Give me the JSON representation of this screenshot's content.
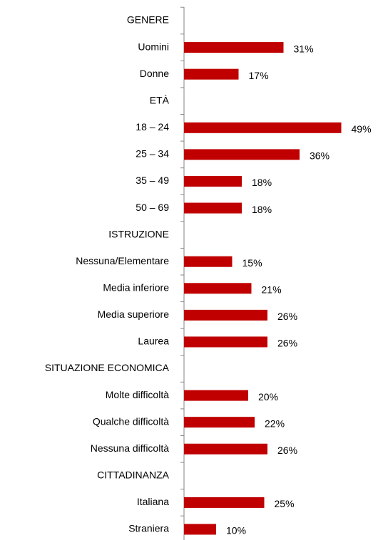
{
  "chart_data": {
    "type": "bar",
    "orientation": "horizontal",
    "color": "#c00000",
    "categories": [
      "GENERE",
      "Uomini",
      "Donne",
      "ETÀ",
      "18 – 24",
      "25 – 34",
      "35 – 49",
      "50 – 69",
      "ISTRUZIONE",
      "Nessuna/Elementare",
      "Media inferiore",
      "Media superiore",
      "Laurea",
      "SITUAZIONE ECONOMICA",
      "Molte difficoltà",
      "Qualche difficoltà",
      "Nessuna difficoltà",
      "CITTADINANZA",
      "Italiana",
      "Straniera"
    ],
    "values": [
      null,
      31,
      17,
      null,
      49,
      36,
      18,
      18,
      null,
      15,
      21,
      26,
      26,
      null,
      20,
      22,
      26,
      null,
      25,
      10
    ],
    "value_labels": [
      null,
      "31%",
      "17%",
      null,
      "49%",
      "36%",
      "18%",
      "18%",
      null,
      "15%",
      "21%",
      "26%",
      "26%",
      null,
      "20%",
      "22%",
      "26%",
      null,
      "25%",
      "10%"
    ]
  }
}
